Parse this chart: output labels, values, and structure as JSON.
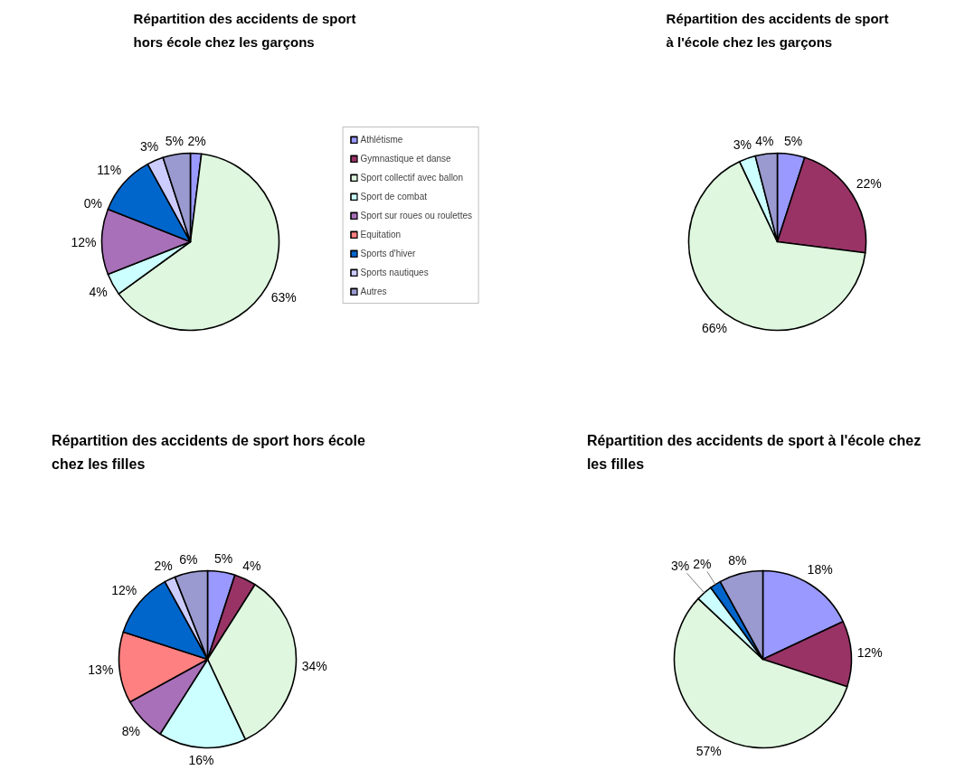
{
  "chart_data": [
    {
      "type": "pie",
      "title": "Répartition des accidents de sport hors école chez les garçons",
      "categories": [
        "Athlétisme",
        "Gymnastique et danse",
        "Sport collectif avec ballon",
        "Sport de combat",
        "Sport sur roues ou roulettes",
        "Equitation",
        "Sports d'hiver",
        "Sports nautiques",
        "Autres"
      ],
      "values": [
        2,
        0,
        63,
        4,
        12,
        0,
        11,
        3,
        5
      ],
      "value_labels": [
        "2%",
        null,
        "63%",
        "4%",
        "12%",
        "0%",
        "11%",
        "3%",
        "5%"
      ],
      "colors": [
        "#9999ff",
        "#993366",
        "#dff7df",
        "#ccffff",
        "#a870b8",
        "#ff8080",
        "#0066cc",
        "#ccccff",
        "#9a9ad0"
      ],
      "legend": "right"
    },
    {
      "type": "pie",
      "title": "Répartition des accidents de sport à l'école chez les garçons",
      "values": [
        5,
        22,
        66,
        3,
        4
      ],
      "value_labels": [
        "5%",
        "22%",
        "66%",
        "3%",
        "4%"
      ],
      "colors": [
        "#9999ff",
        "#993366",
        "#dff7df",
        "#ccffff",
        "#9a9ad0"
      ]
    },
    {
      "type": "pie",
      "title": "Répartition des accidents de sport hors école chez les filles",
      "values": [
        5,
        4,
        34,
        16,
        8,
        13,
        12,
        2,
        6
      ],
      "value_labels": [
        "5%",
        "4%",
        "34%",
        "16%",
        "8%",
        "13%",
        "12%",
        "2%",
        "6%"
      ],
      "colors": [
        "#9999ff",
        "#993366",
        "#dff7df",
        "#ccffff",
        "#a870b8",
        "#ff8080",
        "#0066cc",
        "#ccccff",
        "#9a9ad0"
      ]
    },
    {
      "type": "pie",
      "title": "Répartition des accidents de sport à l'école chez les filles",
      "values": [
        18,
        12,
        57,
        3,
        2,
        8
      ],
      "value_labels": [
        "18%",
        "12%",
        "57%",
        "3%",
        "2%",
        "8%"
      ],
      "colors": [
        "#9999ff",
        "#993366",
        "#dff7df",
        "#ccffff",
        "#0066cc",
        "#9a9ad0"
      ]
    }
  ]
}
